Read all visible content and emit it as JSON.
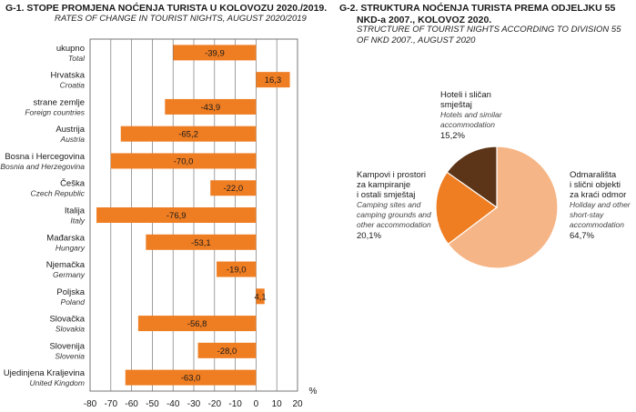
{
  "chart1": {
    "title": "G-1.  STOPE PROMJENA NOĆENJA TURISTA U KOLOVOZU 2020./2019.",
    "subtitle": "RATES OF CHANGE IN TOURIST NIGHTS, AUGUST 2020/2019"
  },
  "chart2": {
    "title_lines": [
      "G-2.  STRUKTURA NOĆENJA TURISTA PREMA ODJELJKU 55",
      "NKD-a 2007., KOLOVOZ 2020."
    ],
    "subtitle_lines": [
      "STRUCTURE OF TOURIST NIGHTS ACCORDING TO DIVISION 55",
      "OF NKD 2007., AUGUST 2020"
    ]
  },
  "chart_data": [
    {
      "type": "bar",
      "orientation": "horizontal",
      "title": "G-1.  STOPE PROMJENA NOĆENJA TURISTA U KOLOVOZU 2020./2019.",
      "subtitle": "RATES OF CHANGE IN TOURIST NIGHTS, AUGUST 2020/2019",
      "categories": [
        "ukupno",
        "Hrvatska",
        "strane zemlje",
        "Austrija",
        "Bosna i Hercegovina",
        "Češka",
        "Italija",
        "Mađarska",
        "Njemačka",
        "Poljska",
        "Slovačka",
        "Slovenija",
        "Ujedinjena Kraljevina"
      ],
      "categories_en": [
        "Total",
        "Croatia",
        "Foreign countries",
        "Austria",
        "Bosnia and Herzegovina",
        "Czech Republic",
        "Italy",
        "Hungary",
        "Germany",
        "Poland",
        "Slovakia",
        "Slovenia",
        "United Kingdom"
      ],
      "values": [
        -39.9,
        16.3,
        -43.9,
        -65.2,
        -70.0,
        -22.0,
        -76.9,
        -53.1,
        -19.0,
        4.1,
        -56.8,
        -28.0,
        -63.0
      ],
      "value_labels": [
        "-39,9",
        "16,3",
        "-43,9",
        "-65,2",
        "-70,0",
        "-22,0",
        "-76,9",
        "-53,1",
        "-19,0",
        "4,1",
        "-56,8",
        "-28,0",
        "-63,0"
      ],
      "xlim": [
        -80,
        20
      ],
      "xticks": [
        -80,
        -70,
        -60,
        -50,
        -40,
        -30,
        -20,
        -10,
        0,
        10,
        20
      ],
      "xunit": "%",
      "grid": "vertical",
      "bar_color": "#ef7d22"
    },
    {
      "type": "pie",
      "title": "G-2.  STRUKTURA NOĆENJA TURISTA PREMA ODJELJKU 55 NKD-a 2007., KOLOVOZ 2020.",
      "subtitle": "STRUCTURE OF TOURIST NIGHTS ACCORDING TO DIVISION 55 OF NKD 2007., AUGUST 2020",
      "slices": [
        {
          "label": "Odmarališta i slični objekti za kraći odmor",
          "label_lines": [
            "Odmarališta",
            "i slični objekti",
            "za kraći odmor"
          ],
          "label_en_lines": [
            "Holiday and other",
            "short-stay",
            "accommodation"
          ],
          "value": 64.7,
          "value_label": "64,7%",
          "color": "#f6b586"
        },
        {
          "label": "Kampovi i prostori za kampiranje i ostali smještaj",
          "label_lines": [
            "Kampovi i prostori",
            "za kampiranje",
            "i ostali smještaj"
          ],
          "label_en_lines": [
            "Camping sites and",
            "camping grounds and",
            "other accommodation"
          ],
          "value": 20.1,
          "value_label": "20,1%",
          "color": "#ef7d22"
        },
        {
          "label": "Hoteli i sličan smještaj",
          "label_lines": [
            "Hoteli i sličan",
            "smještaj"
          ],
          "label_en_lines": [
            "Hotels and similar",
            "accommodation"
          ],
          "value": 15.2,
          "value_label": "15,2%",
          "color": "#5c3518"
        }
      ]
    }
  ]
}
